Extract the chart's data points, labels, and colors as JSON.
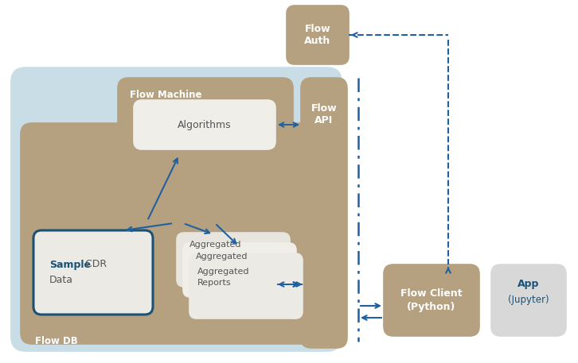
{
  "bg_color": "#ffffff",
  "tan": "#b5a080",
  "light_blue_bg": "#c8dde6",
  "white_box": "#f0eee9",
  "white_box2": "#e8e5df",
  "white_box3": "#eceae5",
  "sample_box_bg": "#eceae5",
  "flow_client_box": "#b5a080",
  "app_box": "#d8d8d8",
  "arrow_blue": "#2060a0",
  "text_white": "#ffffff",
  "text_dark": "#555555",
  "text_blue_bold": "#1a5276",
  "flow_db_label": "Flow DB",
  "flow_machine_label": "Flow Machine",
  "flow_api_label": "Flow\nAPI",
  "flow_auth_label": "Flow\nAuth",
  "flow_client_label": "Flow Client\n(Python)",
  "app_label": "App",
  "app_sublabel": "(Jupyter)",
  "algorithms_label": "Algorithms",
  "agg1_label": "Aggregated",
  "agg2_label": "Aggregated",
  "agg3_label": "Aggregated\nReports",
  "sample_bold": "Sample",
  "sample_rest": " CDR",
  "sample_line2": "Data"
}
